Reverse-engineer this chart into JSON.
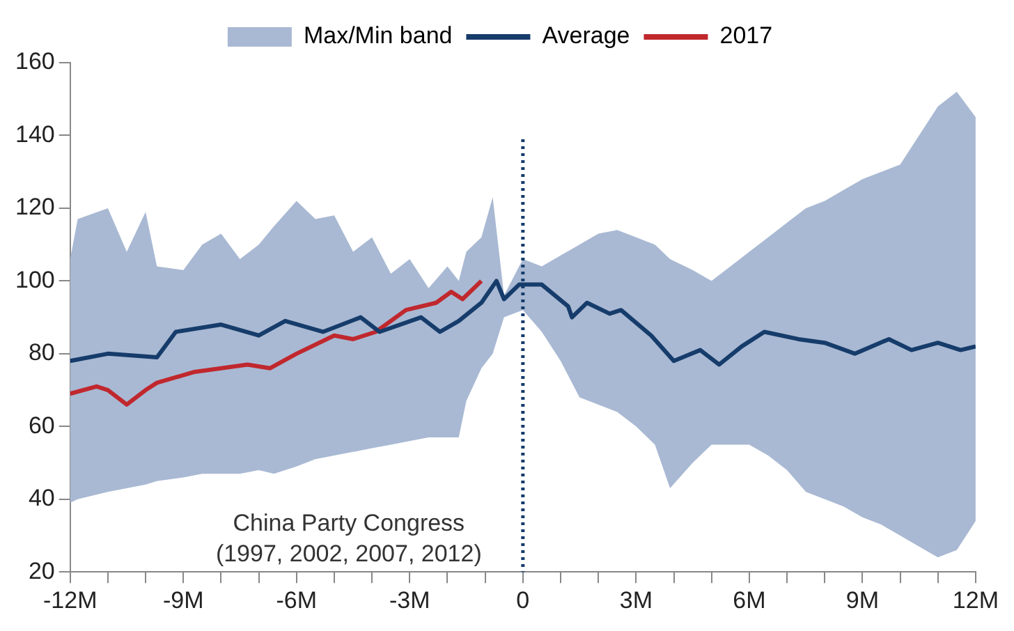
{
  "chart_data": {
    "type": "line",
    "xlim": [
      -12,
      12
    ],
    "ylim": [
      20,
      160
    ],
    "xticks": [
      {
        "value": -12,
        "label": "-12M"
      },
      {
        "value": -11,
        "label": null
      },
      {
        "value": -10,
        "label": null
      },
      {
        "value": -9,
        "label": "-9M"
      },
      {
        "value": -8,
        "label": null
      },
      {
        "value": -7,
        "label": null
      },
      {
        "value": -6,
        "label": "-6M"
      },
      {
        "value": -5,
        "label": null
      },
      {
        "value": -4,
        "label": null
      },
      {
        "value": -3,
        "label": "-3M"
      },
      {
        "value": -2,
        "label": null
      },
      {
        "value": -1,
        "label": null
      },
      0,
      {
        "value": 1,
        "label": null
      },
      {
        "value": 2,
        "label": null
      },
      {
        "value": 3,
        "label": "3M"
      },
      {
        "value": 4,
        "label": null
      },
      {
        "value": 5,
        "label": null
      },
      {
        "value": 6,
        "label": "6M"
      },
      {
        "value": 7,
        "label": null
      },
      {
        "value": 8,
        "label": null
      },
      {
        "value": 9,
        "label": "9M"
      },
      {
        "value": 10,
        "label": null
      },
      {
        "value": 11,
        "label": null
      },
      {
        "value": 12,
        "label": "12M"
      }
    ],
    "yticks": [
      20,
      40,
      60,
      80,
      100,
      120,
      140,
      160
    ],
    "grid": false,
    "legend": "top",
    "marker": "none",
    "series": [
      {
        "name": "Max/Min band",
        "type": "area",
        "color": "#a9b9d3",
        "x": [
          -12,
          -11.8,
          -11,
          -10.5,
          -10,
          -9.7,
          -9,
          -8.5,
          -8,
          -7.5,
          -7,
          -6.6,
          -6,
          -5.5,
          -5,
          -4.5,
          -4,
          -3.5,
          -3,
          -2.5,
          -2,
          -1.7,
          -1.5,
          -1.1,
          -0.8,
          -0.5,
          0,
          0.5,
          1,
          1.5,
          2,
          2.5,
          3,
          3.5,
          3.9,
          4.5,
          5,
          5.5,
          6,
          6.5,
          7,
          7.5,
          8,
          8.5,
          9,
          9.5,
          10,
          10.5,
          11,
          11.5,
          12
        ],
        "values": [
          null,
          null,
          null,
          null,
          null,
          null,
          null,
          null,
          null,
          null,
          null,
          null,
          null,
          null,
          null,
          null,
          null,
          null,
          null,
          null,
          null,
          null,
          null,
          null,
          null,
          null,
          null,
          null,
          null,
          null,
          null,
          null,
          null,
          null,
          null,
          null,
          null,
          null,
          null,
          null,
          null,
          null,
          null,
          null,
          null,
          null,
          null,
          null,
          null,
          null,
          null
        ],
        "upper": [
          106,
          117,
          120,
          108,
          119,
          104,
          103,
          110,
          113,
          106,
          110,
          115,
          122,
          117,
          118,
          108,
          112,
          102,
          106,
          98,
          104,
          100,
          108,
          112,
          123,
          96,
          106,
          104,
          107,
          110,
          113,
          114,
          112,
          110,
          106,
          103,
          100,
          104,
          108,
          112,
          116,
          120,
          122,
          125,
          128,
          130,
          132,
          140,
          148,
          152,
          145
        ],
        "lower": [
          39,
          40,
          42,
          43,
          44,
          45,
          46,
          47,
          47,
          47,
          48,
          47,
          49,
          51,
          52,
          53,
          54,
          55,
          56,
          57,
          57,
          57,
          67,
          76,
          80,
          90,
          92,
          86,
          78,
          68,
          66,
          64,
          60,
          55,
          43,
          50,
          55,
          55,
          55,
          52,
          48,
          42,
          40,
          38,
          35,
          33,
          30,
          27,
          24,
          26,
          34
        ]
      },
      {
        "name": "Average",
        "color": "#163c6b",
        "x": [
          -12,
          -11,
          -9.7,
          -9.2,
          -8,
          -7,
          -6.3,
          -5.3,
          -4.3,
          -3.8,
          -2.7,
          -2.2,
          -1.7,
          -1.1,
          -0.7,
          -0.5,
          -0.1,
          0.5,
          1.2,
          1.3,
          1.7,
          2.3,
          2.6,
          3.4,
          4,
          4.7,
          5.2,
          5.8,
          6.4,
          7.3,
          8,
          8.8,
          9.7,
          10.3,
          11,
          11.6,
          12
        ],
        "values": [
          78,
          80,
          79,
          86,
          88,
          85,
          89,
          86,
          90,
          86,
          90,
          86,
          89,
          94,
          100,
          95,
          99,
          99,
          93,
          90,
          94,
          91,
          92,
          85,
          78,
          81,
          77,
          82,
          86,
          84,
          83,
          80,
          84,
          81,
          83,
          81,
          82
        ]
      },
      {
        "name": "2017",
        "color": "#c0282e",
        "x": [
          -12,
          -11.3,
          -11,
          -10.5,
          -10,
          -9.7,
          -8.7,
          -7.3,
          -6.7,
          -6,
          -5,
          -4.5,
          -3.9,
          -3.1,
          -2.3,
          -1.9,
          -1.6,
          -1.1
        ],
        "values": [
          69,
          71,
          70,
          66,
          70,
          72,
          75,
          77,
          76,
          80,
          85,
          84,
          86,
          92,
          94,
          97,
          95,
          100
        ]
      }
    ],
    "ref_lines": [
      {
        "axis": "x",
        "value": 0,
        "label": "China Party Congress (1997, 2002, 2007, 2012)",
        "color": "#163c6b",
        "line_style": "dotted"
      }
    ]
  }
}
